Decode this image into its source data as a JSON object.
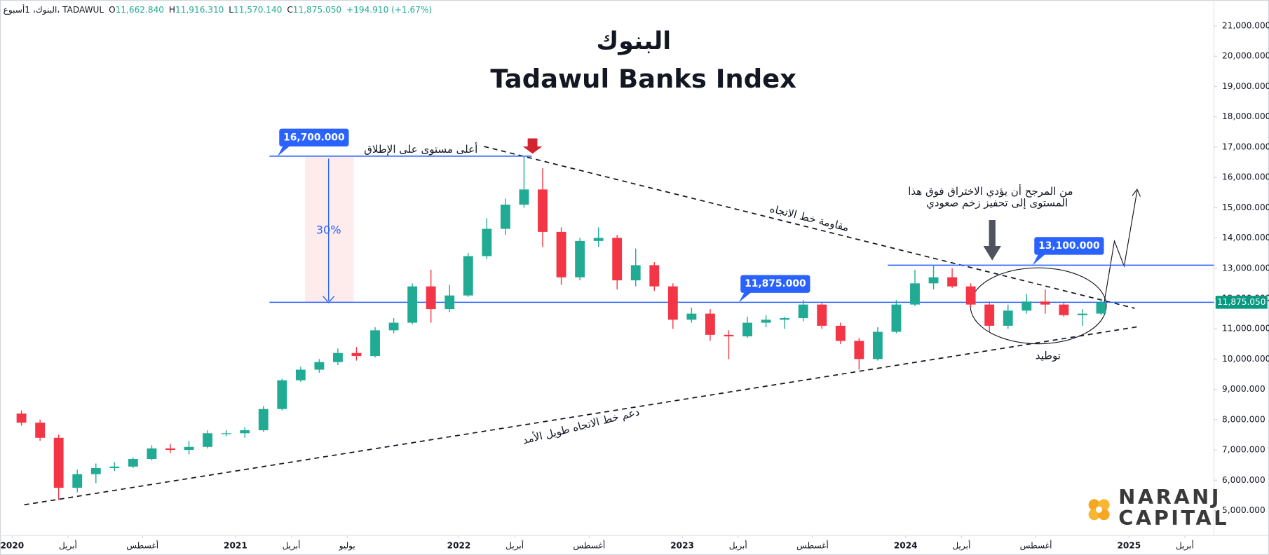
{
  "chart_data": {
    "type": "candlestick",
    "title": "البنوك",
    "subtitle": "Tadawul Banks Index",
    "header": {
      "symbol": "البنوك، 1أسبوع، TADAWUL",
      "items": [
        {
          "label": "O",
          "value": "11,662.840"
        },
        {
          "label": "H",
          "value": "11,916.310"
        },
        {
          "label": "L",
          "value": "11,570.140"
        },
        {
          "label": "C",
          "value": "11,875.050"
        }
      ],
      "change": "+194.910 (+1.67%)"
    },
    "colors": {
      "up": "#22ab94",
      "down": "#f23645",
      "level": "#2962ff",
      "last": "#089981"
    },
    "x": [
      "2020-01",
      "2020-02",
      "2020-03",
      "2020-04",
      "2020-05",
      "2020-06",
      "2020-07",
      "2020-08",
      "2020-09",
      "2020-10",
      "2020-11",
      "2020-12",
      "2021-01",
      "2021-02",
      "2021-03",
      "2021-04",
      "2021-05",
      "2021-06",
      "2021-07",
      "2021-08",
      "2021-09",
      "2021-10",
      "2021-11",
      "2021-12",
      "2022-01",
      "2022-02",
      "2022-03",
      "2022-04",
      "2022-05",
      "2022-06",
      "2022-07",
      "2022-08",
      "2022-09",
      "2022-10",
      "2022-11",
      "2022-12",
      "2023-01",
      "2023-02",
      "2023-03",
      "2023-04",
      "2023-05",
      "2023-06",
      "2023-07",
      "2023-08",
      "2023-09",
      "2023-10",
      "2023-11",
      "2023-12",
      "2024-01",
      "2024-02",
      "2024-03",
      "2024-04",
      "2024-05",
      "2024-06",
      "2024-07",
      "2024-08",
      "2024-09",
      "2024-10",
      "2024-11"
    ],
    "open": [
      8200,
      7900,
      7400,
      5750,
      6200,
      6400,
      6450,
      6700,
      7050,
      7000,
      7100,
      7550,
      7550,
      7650,
      8350,
      9300,
      9650,
      9900,
      10200,
      10100,
      10950,
      11200,
      12400,
      11650,
      12100,
      13400,
      14300,
      15100,
      15600,
      14200,
      12700,
      13900,
      14000,
      12600,
      13100,
      12400,
      11300,
      11500,
      10800,
      10750,
      11200,
      11300,
      11350,
      11800,
      11100,
      10600,
      10000,
      10900,
      11800,
      12500,
      12700,
      12400,
      11800,
      11100,
      11600,
      11900,
      11800,
      11450,
      11500
    ],
    "high": [
      8300,
      8000,
      7500,
      6350,
      6550,
      6600,
      6750,
      7150,
      7200,
      7300,
      7650,
      7650,
      7750,
      8450,
      9350,
      9750,
      10000,
      10350,
      10400,
      11050,
      11350,
      12500,
      12950,
      12450,
      13500,
      14650,
      15300,
      16700,
      16300,
      14350,
      14000,
      14350,
      14100,
      13650,
      13200,
      12500,
      11700,
      11650,
      10950,
      11400,
      11450,
      11400,
      11950,
      11850,
      11200,
      10700,
      11050,
      11950,
      12950,
      13100,
      13000,
      12500,
      11900,
      11800,
      12150,
      12300,
      11850,
      11650,
      12000
    ],
    "low": [
      7800,
      7300,
      5350,
      5600,
      5900,
      6300,
      6400,
      6650,
      6900,
      6850,
      7050,
      7450,
      7400,
      7600,
      8300,
      9250,
      9550,
      9800,
      9950,
      10050,
      10850,
      11150,
      11200,
      11550,
      12050,
      13300,
      14100,
      15000,
      13700,
      12450,
      12600,
      13700,
      12300,
      12400,
      12250,
      11000,
      11200,
      10600,
      10000,
      10700,
      11050,
      11000,
      11250,
      11000,
      10500,
      9650,
      9950,
      10850,
      11750,
      12300,
      12350,
      11700,
      10900,
      11000,
      11500,
      11500,
      11400,
      11100,
      11450
    ],
    "close": [
      7900,
      7400,
      5750,
      6200,
      6400,
      6450,
      6700,
      7050,
      7000,
      7100,
      7550,
      7550,
      7650,
      8350,
      9300,
      9650,
      9900,
      10200,
      10100,
      10950,
      11200,
      12400,
      11650,
      12100,
      13400,
      14300,
      15100,
      15600,
      14200,
      12700,
      13900,
      14000,
      12600,
      13100,
      12400,
      11300,
      11500,
      10800,
      10750,
      11200,
      11300,
      11350,
      11800,
      11100,
      10600,
      10000,
      10900,
      11800,
      12500,
      12700,
      12400,
      11800,
      11100,
      11600,
      11900,
      11800,
      11450,
      11500,
      11875.05
    ],
    "ylim": [
      4173,
      21855
    ],
    "yticks": [
      {
        "value": 5000,
        "label": "5,000.000"
      },
      {
        "value": 6000,
        "label": "6,000.000"
      },
      {
        "value": 7000,
        "label": "7,000.000"
      },
      {
        "value": 8000,
        "label": "8,000.000"
      },
      {
        "value": 9000,
        "label": "9,000.000"
      },
      {
        "value": 10000,
        "label": "10,000.000"
      },
      {
        "value": 11000,
        "label": "11,000.000"
      },
      {
        "value": 12000,
        "label": "12,000.000"
      },
      {
        "value": 13000,
        "label": "13,000.000"
      },
      {
        "value": 14000,
        "label": "14,000.000"
      },
      {
        "value": 15000,
        "label": "15,000.000"
      },
      {
        "value": 16000,
        "label": "16,000.000"
      },
      {
        "value": 17000,
        "label": "17,000.000"
      },
      {
        "value": 18000,
        "label": "18,000.000"
      },
      {
        "value": 19000,
        "label": "19,000.000"
      },
      {
        "value": 20000,
        "label": "20,000.000"
      },
      {
        "value": 21000,
        "label": "21,000.000"
      }
    ],
    "xticks": [
      {
        "value": "2020-01",
        "label": "2020"
      },
      {
        "value": "2020-04",
        "label": "أبريل"
      },
      {
        "value": "2020-08",
        "label": "أغسطس"
      },
      {
        "value": "2021-01",
        "label": "2021"
      },
      {
        "value": "2021-04",
        "label": "أبريل"
      },
      {
        "value": "2021-07",
        "label": "يوليو"
      },
      {
        "value": "2022-01",
        "label": "2022"
      },
      {
        "value": "2022-04",
        "label": "أبريل"
      },
      {
        "value": "2022-08",
        "label": "أغسطس"
      },
      {
        "value": "2023-01",
        "label": "2023"
      },
      {
        "value": "2023-04",
        "label": "أبريل"
      },
      {
        "value": "2023-08",
        "label": "أغسطس"
      },
      {
        "value": "2024-01",
        "label": "2024"
      },
      {
        "value": "2024-04",
        "label": "أبريل"
      },
      {
        "value": "2024-08",
        "label": "أغسطس"
      },
      {
        "value": "2025-01",
        "label": "2025"
      },
      {
        "value": "2025-04",
        "label": "أبريل"
      }
    ],
    "levels": [
      {
        "value": 16700,
        "label": "16,700.000"
      },
      {
        "value": 11875,
        "label": "11,875.000"
      },
      {
        "value": 13100,
        "label": "13,100.000"
      }
    ],
    "last_price": {
      "value": 11875.05,
      "label": "11,875.050"
    },
    "annotations": {
      "ath": "أعلى مستوى على الإطلاق",
      "drop": "30%",
      "resistance": "مقاومة خط الاتجاه",
      "breakout_1": "من المرجح أن يؤدي الاختراق فوق هذا",
      "breakout_2": "المستوى إلى تحفيز زخم صعودي",
      "consolidation": "توطيد",
      "support": "دعم خط الاتجاه طويل الأمد"
    },
    "brand": [
      "NARANJ",
      "CAPITAL"
    ]
  }
}
